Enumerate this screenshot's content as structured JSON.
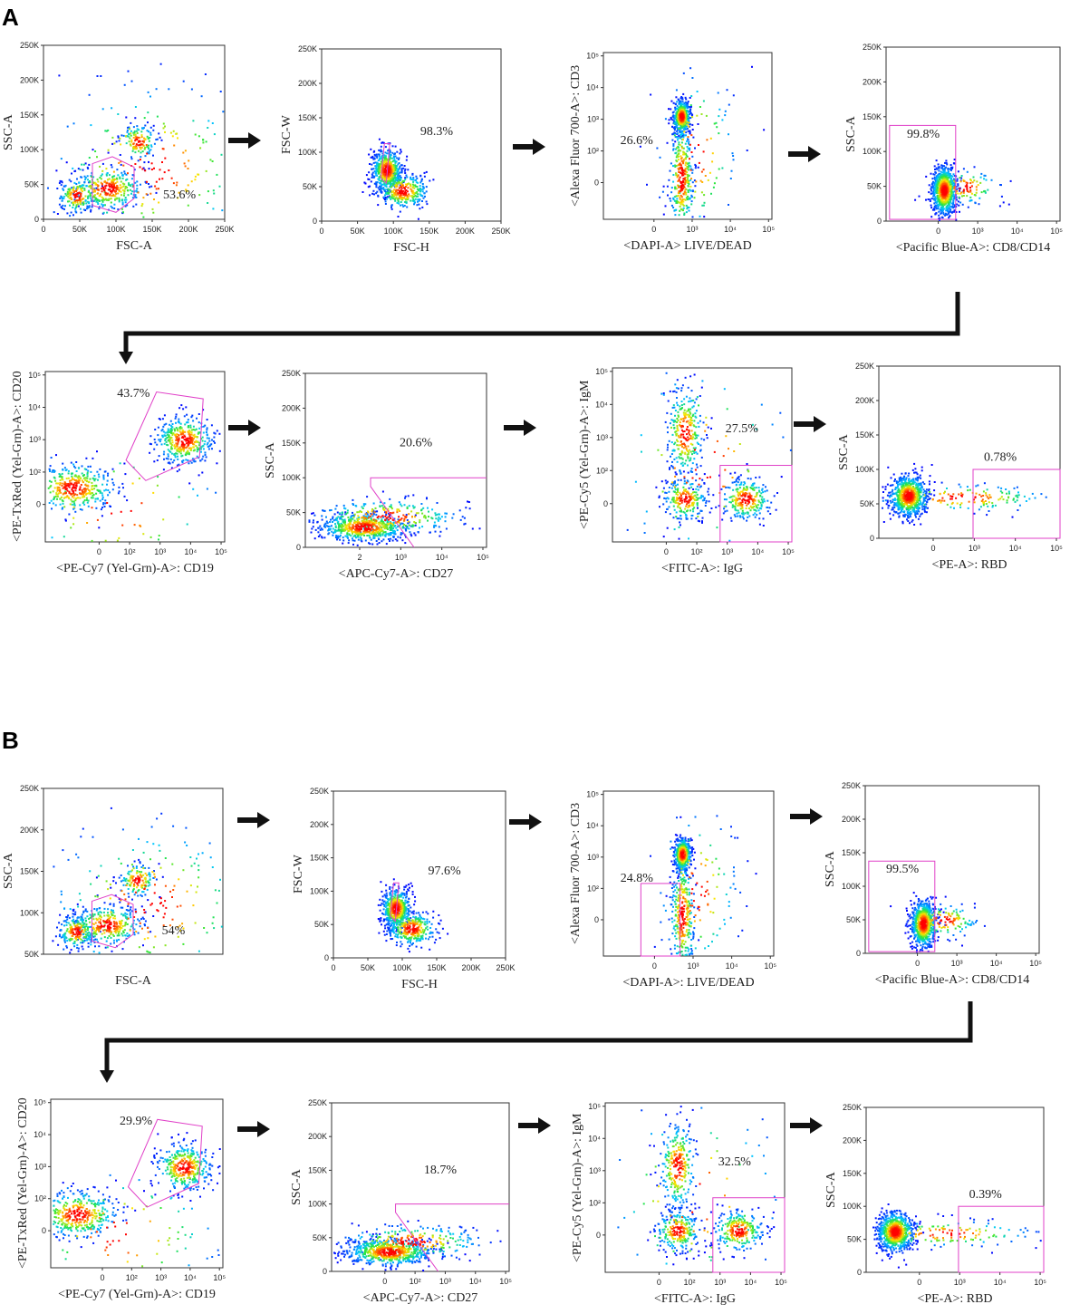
{
  "colors": {
    "gate": "#e040c8",
    "arrow": "#111111",
    "low": "#0000ff",
    "high": "#ff0000"
  },
  "chart_data": [
    {
      "panel": "A",
      "plots": [
        {
          "type": "scatter",
          "xlabel": "FSC-A",
          "ylabel": "SSC-A",
          "scale": "linear",
          "xticks": [
            "0",
            "50K",
            "100K",
            "150K",
            "200K",
            "250K"
          ],
          "yticks": [
            "0",
            "50K",
            "100K",
            "150K",
            "200K",
            "250K"
          ],
          "gate_percent": "53.6%"
        },
        {
          "type": "scatter",
          "xlabel": "FSC-H",
          "ylabel": "FSC-W",
          "scale": "linear",
          "xticks": [
            "0",
            "50K",
            "100K",
            "150K",
            "200K",
            "250K"
          ],
          "yticks": [
            "0",
            "50K",
            "100K",
            "150K",
            "200K",
            "250K"
          ],
          "gate_percent": "98.3%"
        },
        {
          "type": "scatter",
          "xlabel": "<DAPI-A> LIVE/DEAD",
          "ylabel": "<Alexa Fluor 700-A>: CD3",
          "scale": "log",
          "xticks": [
            "0",
            "10³",
            "10⁴",
            "10⁵"
          ],
          "yticks": [
            "0",
            "10²",
            "10³",
            "10⁴",
            "10⁵"
          ],
          "gate_percent": "26.6%"
        },
        {
          "type": "scatter",
          "xlabel": "<Pacific Blue-A>: CD8/CD14",
          "ylabel": "SSC-A",
          "scale": "mixed",
          "xticks": [
            "0",
            "10³",
            "10⁴",
            "10⁵"
          ],
          "yticks": [
            "0",
            "50K",
            "100K",
            "150K",
            "200K",
            "250K"
          ],
          "gate_percent": "99.8%"
        },
        {
          "type": "scatter",
          "xlabel": "<PE-Cy7 (Yel-Grn)-A>: CD19",
          "ylabel": "<PE-TxRed (Yel-Grn)-A>: CD20",
          "scale": "log",
          "xticks": [
            "0",
            "10²",
            "10³",
            "10⁴",
            "10⁵"
          ],
          "yticks": [
            "0",
            "10²",
            "10³",
            "10⁴",
            "10⁵"
          ],
          "gate_percent": "43.7%"
        },
        {
          "type": "scatter",
          "xlabel": "<APC-Cy7-A>: CD27",
          "ylabel": "SSC-A",
          "scale": "mixed",
          "xticks": [
            "2",
            "10³",
            "10⁴",
            "10⁵"
          ],
          "yticks": [
            "0",
            "50K",
            "100K",
            "150K",
            "200K",
            "250K"
          ],
          "gate_percent": "20.6%"
        },
        {
          "type": "scatter",
          "xlabel": "<FITC-A>: IgG",
          "ylabel": "<PE-Cy5 (Yel-Grn)-A>: IgM",
          "scale": "log",
          "xticks": [
            "0",
            "10²",
            "10³",
            "10⁴",
            "10⁵"
          ],
          "yticks": [
            "0",
            "10²",
            "10³",
            "10⁴",
            "10⁵"
          ],
          "gate_percent": "27.5%"
        },
        {
          "type": "scatter",
          "xlabel": "<PE-A>: RBD",
          "ylabel": "SSC-A",
          "scale": "mixed",
          "xticks": [
            "0",
            "10³",
            "10⁴",
            "10⁵"
          ],
          "yticks": [
            "0",
            "50K",
            "100K",
            "150K",
            "200K",
            "250K"
          ],
          "gate_percent": "0.78%"
        }
      ]
    },
    {
      "panel": "B",
      "plots": [
        {
          "type": "scatter",
          "xlabel": "FSC-A",
          "ylabel": "SSC-A",
          "scale": "linear",
          "xticks": [],
          "yticks": [
            "50K",
            "100K",
            "150K",
            "200K",
            "250K"
          ],
          "gate_percent": "54%"
        },
        {
          "type": "scatter",
          "xlabel": "FSC-H",
          "ylabel": "FSC-W",
          "scale": "linear",
          "xticks": [
            "0",
            "50K",
            "100K",
            "150K",
            "200K",
            "250K"
          ],
          "yticks": [
            "0",
            "50K",
            "100K",
            "150K",
            "200K",
            "250K"
          ],
          "gate_percent": "97.6%"
        },
        {
          "type": "scatter",
          "xlabel": "<DAPI-A>: LIVE/DEAD",
          "ylabel": "<Alexa Fluor 700-A>: CD3",
          "scale": "log",
          "xticks": [
            "0",
            "10³",
            "10⁴",
            "10⁵"
          ],
          "yticks": [
            "0",
            "10²",
            "10³",
            "10⁴",
            "10⁵"
          ],
          "gate_percent": "24.8%"
        },
        {
          "type": "scatter",
          "xlabel": "<Pacific Blue-A>: CD8/CD14",
          "ylabel": "SSC-A",
          "scale": "mixed",
          "xticks": [
            "0",
            "10³",
            "10⁴",
            "10⁵"
          ],
          "yticks": [
            "0",
            "50K",
            "100K",
            "150K",
            "200K",
            "250K"
          ],
          "gate_percent": "99.5%"
        },
        {
          "type": "scatter",
          "xlabel": "<PE-Cy7 (Yel-Grn)-A>: CD19",
          "ylabel": "<PE-TxRed (Yel-Grn)-A>: CD20",
          "scale": "log",
          "xticks": [
            "0",
            "10²",
            "10³",
            "10⁴",
            "10⁵"
          ],
          "yticks": [
            "0",
            "10²",
            "10³",
            "10⁴",
            "10⁵"
          ],
          "gate_percent": "29.9%"
        },
        {
          "type": "scatter",
          "xlabel": "<APC-Cy7-A>: CD27",
          "ylabel": "SSC-A",
          "scale": "mixed",
          "xticks": [
            "0",
            "10²",
            "10³",
            "10⁴",
            "10⁵"
          ],
          "yticks": [
            "0",
            "50K",
            "100K",
            "150K",
            "200K",
            "250K"
          ],
          "gate_percent": "18.7%"
        },
        {
          "type": "scatter",
          "xlabel": "<FITC-A>: IgG",
          "ylabel": "<PE-Cy5 (Yel-Grn)-A>: IgM",
          "scale": "log",
          "xticks": [
            "0",
            "10²",
            "10³",
            "10⁴",
            "10⁵"
          ],
          "yticks": [
            "0",
            "10²",
            "10³",
            "10⁴",
            "10⁵"
          ],
          "gate_percent": "32.5%"
        },
        {
          "type": "scatter",
          "xlabel": "<PE-A>: RBD",
          "ylabel": "SSC-A",
          "scale": "mixed",
          "xticks": [
            "0",
            "10³",
            "10⁴",
            "10⁵"
          ],
          "yticks": [
            "0",
            "50K",
            "100K",
            "150K",
            "200K",
            "250K"
          ],
          "gate_percent": "0.39%"
        }
      ]
    }
  ]
}
